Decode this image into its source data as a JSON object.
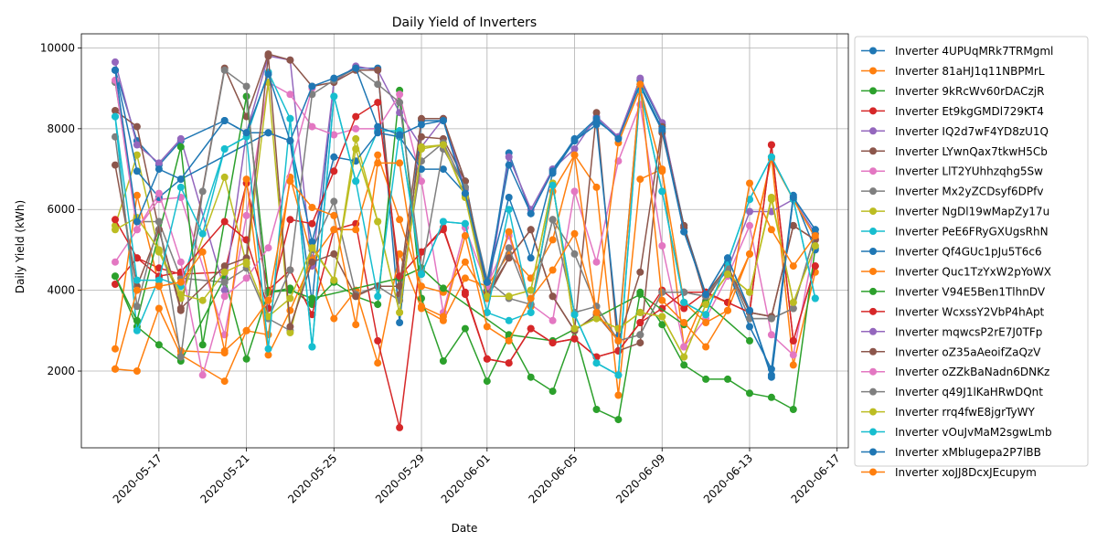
{
  "chart_data": {
    "type": "line",
    "title": "Daily Yield of Inverters",
    "xlabel": "Date",
    "ylabel": "Daily Yield (kWh)",
    "x_tick_labels": [
      "2020-05-17",
      "2020-05-21",
      "2020-05-25",
      "2020-05-29",
      "2020-06-01",
      "2020-06-05",
      "2020-06-09",
      "2020-06-13",
      "2020-06-17"
    ],
    "y_tick_labels": [
      "2000",
      "4000",
      "6000",
      "8000",
      "10000"
    ],
    "ylim": [
      100,
      10350
    ],
    "grid": true,
    "legend_position": "outside-right",
    "dates": [
      "2020-05-15",
      "2020-05-16",
      "2020-05-17",
      "2020-05-18",
      "2020-05-19",
      "2020-05-20",
      "2020-05-21",
      "2020-05-22",
      "2020-05-23",
      "2020-05-24",
      "2020-05-25",
      "2020-05-26",
      "2020-05-27",
      "2020-05-28",
      "2020-05-29",
      "2020-05-30",
      "2020-05-31",
      "2020-06-01",
      "2020-06-02",
      "2020-06-03",
      "2020-06-04",
      "2020-06-05",
      "2020-06-06",
      "2020-06-07",
      "2020-06-08",
      "2020-06-09",
      "2020-06-10",
      "2020-06-11",
      "2020-06-12",
      "2020-06-13",
      "2020-06-14",
      "2020-06-15",
      "2020-06-16"
    ],
    "series": [
      {
        "name": "Inverter 4UPUqMRk7TRMgml",
        "color": "#1f77b4",
        "values": [
          9450,
          7700,
          7100,
          7700,
          null,
          8200,
          7900,
          7900,
          7700,
          3700,
          9200,
          9500,
          9500,
          3200,
          8200,
          8200,
          6700,
          4000,
          7400,
          5900,
          7000,
          7700,
          8200,
          7800,
          9200,
          8100,
          5600,
          3900,
          4800,
          3500,
          1900,
          6300,
          5500
        ]
      },
      {
        "name": "Inverter 81aHJ1q11NBPMrL",
        "color": "#ff7f0e",
        "values": [
          2050,
          2000,
          3550,
          2400,
          null,
          1750,
          3000,
          2900,
          6800,
          4800,
          3300,
          4000,
          2200,
          4900,
          3550,
          3250,
          4300,
          4100,
          4900,
          4300,
          5250,
          7350,
          6550,
          1400,
          6750,
          7000,
          2600,
          3900,
          3700,
          4900,
          7300,
          2150,
          4450
        ]
      },
      {
        "name": "Inverter 9kRcWv60rDACzjR",
        "color": "#2ca02c",
        "values": [
          4350,
          3100,
          2650,
          2250,
          null,
          4300,
          2300,
          3950,
          4050,
          3650,
          4200,
          3850,
          3650,
          8950,
          3800,
          2250,
          3050,
          1750,
          2850,
          1850,
          1500,
          3000,
          1050,
          800,
          3950,
          3150,
          2150,
          1800,
          1800,
          1450,
          1350,
          1050,
          5050
        ]
      },
      {
        "name": "Inverter Et9kgGMDl729KT4",
        "color": "#d62728",
        "values": [
          4150,
          4800,
          4550,
          4400,
          null,
          4450,
          6650,
          4000,
          4500,
          3400,
          5500,
          5650,
          2750,
          600,
          4950,
          5500,
          3950,
          2300,
          2200,
          3050,
          2700,
          2800,
          2350,
          2500,
          3200,
          3550,
          3950,
          3950,
          3700,
          3450,
          7600,
          2750,
          4600
        ]
      },
      {
        "name": "Inverter IQ2d7wF4YD8zU1Q",
        "color": "#9467bd",
        "values": [
          9650,
          7600,
          7150,
          7750,
          null,
          4000,
          7900,
          9800,
          9700,
          4600,
          9150,
          9550,
          9450,
          8400,
          7550,
          8250,
          6500,
          3800,
          7300,
          6000,
          7000,
          7500,
          8300,
          7800,
          9250,
          8150,
          5550,
          3850,
          4500,
          5950,
          5950,
          6250,
          5400
        ]
      },
      {
        "name": "Inverter LYwnQax7tkwH5Cb",
        "color": "#8c564b",
        "values": [
          8450,
          8050,
          5500,
          3500,
          null,
          9500,
          8300,
          9850,
          9700,
          9050,
          9150,
          9450,
          9450,
          3900,
          7800,
          7750,
          6700,
          3800,
          4800,
          5500,
          3850,
          3000,
          8400,
          2500,
          2700,
          7900,
          5600,
          3750,
          4600,
          3450,
          3350,
          5600,
          5250
        ]
      },
      {
        "name": "Inverter LlT2YUhhzqhg5Sw",
        "color": "#e377c2",
        "values": [
          4700,
          5500,
          6250,
          6300,
          null,
          2900,
          5850,
          9150,
          8850,
          8050,
          7850,
          8000,
          8000,
          8850,
          6700,
          3450,
          5550,
          4100,
          5350,
          3650,
          3250,
          6450,
          4700,
          7200,
          8600,
          5100,
          2600,
          3300,
          4350,
          5600,
          2900,
          2400,
          5250
        ]
      },
      {
        "name": "Inverter Mx2yZCDsyf6DPfv",
        "color": "#7f7f7f",
        "values": [
          9150,
          5700,
          5700,
          4300,
          null,
          4200,
          4550,
          3300,
          3000,
          5000,
          6200,
          3900,
          4100,
          3750,
          7200,
          7650,
          6550,
          4250,
          3800,
          3650,
          5750,
          4900,
          3600,
          2750,
          2900,
          3950,
          3950,
          3850,
          4550,
          3300,
          3300,
          3550,
          5400
        ]
      },
      {
        "name": "Inverter NgDl19wMapZy17u",
        "color": "#bcbd22",
        "values": [
          5600,
          7350,
          4950,
          3800,
          null,
          6800,
          4650,
          9150,
          2950,
          5100,
          4250,
          7750,
          5700,
          3450,
          7500,
          7600,
          6350,
          3850,
          3850,
          4000,
          6650,
          3050,
          3300,
          3050,
          3450,
          3350,
          2350,
          3650,
          4400,
          3950,
          6300,
          3700,
          5100
        ]
      },
      {
        "name": "Inverter PeE6FRyGXUgsRhN",
        "color": "#17becf",
        "values": [
          8300,
          3000,
          4300,
          4100,
          null,
          7500,
          7800,
          9400,
          8250,
          2600,
          8800,
          6700,
          7950,
          7950,
          4400,
          5700,
          5650,
          3450,
          3250,
          3450,
          6600,
          3400,
          2200,
          1900,
          8950,
          6450,
          3700,
          3400,
          4700,
          6250,
          7300,
          6250,
          3800
        ]
      },
      {
        "name": "Inverter Qf4GUc1pJu5T6c6",
        "color": "#1f77b4",
        "values": [
          9450,
          6950,
          6300,
          6750,
          null,
          null,
          null,
          7900,
          7700,
          5200,
          7300,
          7200,
          7900,
          7800,
          7000,
          7000,
          6400,
          4200,
          6300,
          4800,
          6900,
          7700,
          8100,
          2850,
          9050,
          7950,
          5450,
          3900,
          4500,
          3100,
          2050,
          6350,
          5000
        ]
      },
      {
        "name": "Inverter Quc1TzYxW2pYoWX",
        "color": "#ff7f0e",
        "values": [
          2550,
          6350,
          4150,
          2500,
          null,
          2450,
          6750,
          2400,
          3500,
          4750,
          5500,
          5500,
          7350,
          5750,
          4100,
          3950,
          4700,
          3800,
          5450,
          3600,
          6450,
          7350,
          3400,
          7650,
          9000,
          6950,
          3700,
          3200,
          3500,
          4900,
          7250,
          6250,
          5300
        ]
      },
      {
        "name": "Inverter V94E5Ben1TlhnDV",
        "color": "#2ca02c",
        "values": [
          4350,
          3250,
          null,
          7550,
          2650,
          null,
          8800,
          3950,
          4000,
          3800,
          null,
          null,
          null,
          4300,
          4550,
          4050,
          null,
          null,
          2900,
          null,
          2750,
          null,
          null,
          null,
          3900,
          null,
          3150,
          3700,
          null,
          2750,
          null,
          null,
          null
        ]
      },
      {
        "name": "Inverter WcxssY2VbP4hApt",
        "color": "#d62728",
        "values": [
          5750,
          4800,
          4350,
          4450,
          null,
          5700,
          5250,
          3550,
          5750,
          5650,
          6950,
          8300,
          8650,
          4350,
          4950,
          5550,
          3900,
          2300,
          2200,
          3050,
          2700,
          2800,
          2350,
          2500,
          3200,
          4000,
          3550,
          3950,
          3700,
          3450,
          7600,
          2750,
          4600
        ]
      },
      {
        "name": "Inverter mqwcsP2rE7J0TFp",
        "color": "#9467bd",
        "values": [
          null,
          null,
          null,
          null,
          null,
          null,
          null,
          null,
          null,
          null,
          null,
          null,
          null,
          null,
          null,
          null,
          null,
          null,
          null,
          null,
          null,
          null,
          null,
          null,
          null,
          null,
          null,
          null,
          null,
          null,
          null,
          null,
          null
        ]
      },
      {
        "name": "Inverter oZ35aAeoifZaQzV",
        "color": "#8c564b",
        "values": [
          7100,
          4100,
          5500,
          3550,
          null,
          4600,
          4800,
          9800,
          3100,
          4700,
          4900,
          3850,
          4100,
          4100,
          8250,
          8250,
          6700,
          3900,
          4800,
          5500,
          3850,
          3000,
          3400,
          2750,
          4450,
          8050,
          5550,
          3900,
          4600,
          3450,
          3350,
          5600,
          5250
        ]
      },
      {
        "name": "Inverter oZZkBaNadn6DNKz",
        "color": "#e377c2",
        "values": [
          9200,
          5500,
          6400,
          4700,
          1900,
          3850,
          4300,
          5050,
          null,
          9000,
          null,
          null,
          null,
          null,
          null,
          null,
          null,
          null,
          null,
          null,
          null,
          null,
          null,
          null,
          null,
          null,
          null,
          null,
          null,
          null,
          null,
          null,
          null
        ]
      },
      {
        "name": "Inverter q49J1lKaHRwDQnt",
        "color": "#7f7f7f",
        "values": [
          7800,
          3600,
          5700,
          2350,
          6450,
          9450,
          9050,
          3300,
          4500,
          8850,
          9200,
          9500,
          9100,
          8650,
          4450,
          7500,
          6550,
          3850,
          5050,
          3650,
          5750,
          3450,
          3600,
          2750,
          2900,
          3950,
          3950,
          3850,
          4550,
          3300,
          3300,
          3550,
          5400
        ]
      },
      {
        "name": "Inverter rrq4fwE8jgrTyWY",
        "color": "#bcbd22",
        "values": [
          5500,
          5800,
          5000,
          3900,
          3750,
          4450,
          4700,
          3350,
          3800,
          5050,
          4250,
          7500,
          5700,
          3450,
          7550,
          7600,
          6300,
          3850,
          3850,
          4000,
          6650,
          3050,
          3300,
          3050,
          3450,
          3350,
          2350,
          3650,
          4400,
          3950,
          6250,
          3700,
          5100
        ]
      },
      {
        "name": "Inverter vOuJvMaM2sgwLmb",
        "color": "#17becf",
        "values": [
          8300,
          4250,
          4250,
          6550,
          5400,
          7500,
          7800,
          2550,
          8250,
          2600,
          8800,
          6700,
          3850,
          7950,
          4400,
          5700,
          5650,
          3450,
          6000,
          3450,
          6600,
          3400,
          2200,
          1900,
          8950,
          6450,
          3700,
          3400,
          4700,
          6250,
          7300,
          6250,
          3800
        ]
      },
      {
        "name": "Inverter xMbIugepa2P7lBB",
        "color": "#1f77b4",
        "values": [
          9450,
          5700,
          7000,
          6750,
          null,
          8200,
          7900,
          9350,
          7700,
          9050,
          9250,
          9500,
          8050,
          7850,
          8100,
          8200,
          6400,
          4200,
          7100,
          5900,
          6950,
          7750,
          8250,
          7750,
          9100,
          8000,
          5450,
          3900,
          4800,
          3500,
          1850,
          6300,
          5500
        ]
      },
      {
        "name": "Inverter xoJJ8DcxJEcupym",
        "color": "#ff7f0e",
        "values": [
          2050,
          4000,
          4100,
          4200,
          4950,
          2500,
          3000,
          3750,
          6700,
          6050,
          5850,
          3150,
          7150,
          7150,
          3600,
          3350,
          5350,
          3100,
          2750,
          3800,
          4500,
          5400,
          3450,
          2750,
          9100,
          3750,
          3200,
          2600,
          3500,
          6650,
          5500,
          4600,
          5350
        ]
      }
    ]
  }
}
